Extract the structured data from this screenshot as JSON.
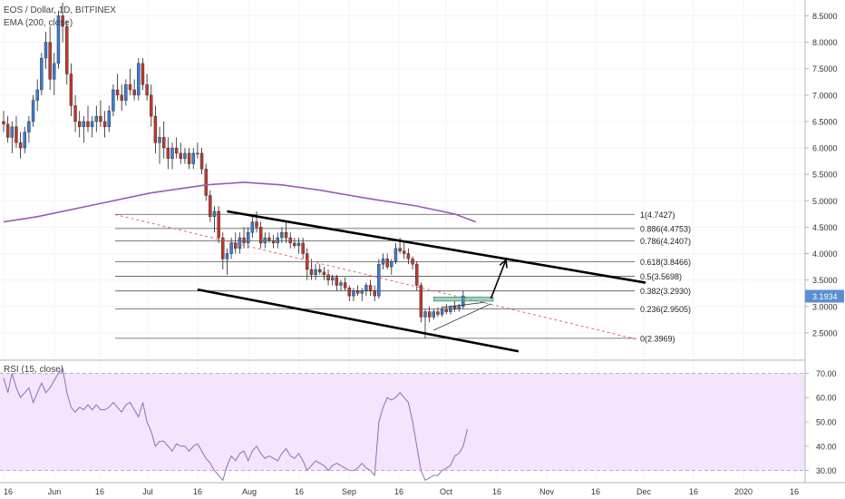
{
  "header": {
    "symbol_line": "EOS / Dollar, 1D, BITFINEX",
    "ema_line": "EMA (200, close)",
    "rsi_line": "RSI (15, close)"
  },
  "colors": {
    "up": "#3a7bd5",
    "down": "#c0392b",
    "ema": "#9b59b6",
    "rsi": "#8e6fb5",
    "rsi_band": "#f3e5fb",
    "price_badge": "#5b8fd0",
    "consolidation": "#4caf8f"
  },
  "chart_data": {
    "type": "candlestick",
    "price_ylim": [
      2.0,
      8.8
    ],
    "price_ticks": [
      "8.5000",
      "8.0000",
      "7.5000",
      "7.0000",
      "6.5000",
      "6.0000",
      "5.5000",
      "5.0000",
      "4.5000",
      "4.0000",
      "3.5000",
      "3.0000",
      "2.5000"
    ],
    "rsi_ylim": [
      25,
      75
    ],
    "rsi_ticks": [
      "70.00",
      "60.00",
      "50.00",
      "40.00",
      "30.00"
    ],
    "x_ticks": [
      "16",
      "Jun",
      "16",
      "Jul",
      "16",
      "Aug",
      "16",
      "Sep",
      "16",
      "Oct",
      "16",
      "Nov",
      "16",
      "Dec",
      "16",
      "2020",
      "16"
    ],
    "last_price": "3.1934",
    "fib_levels": [
      {
        "ratio": 1,
        "price": 4.7427,
        "label": "1(4.7427)"
      },
      {
        "ratio": 0.886,
        "price": 4.4753,
        "label": "0.886(4.4753)"
      },
      {
        "ratio": 0.786,
        "price": 4.2407,
        "label": "0.786(4.2407)"
      },
      {
        "ratio": 0.618,
        "price": 3.8466,
        "label": "0.618(3.8466)"
      },
      {
        "ratio": 0.5,
        "price": 3.5698,
        "label": "0.5(3.5698)"
      },
      {
        "ratio": 0.382,
        "price": 3.293,
        "label": "0.382(3.2930)"
      },
      {
        "ratio": 0.236,
        "price": 2.9505,
        "label": "0.236(2.9505)"
      },
      {
        "ratio": 0,
        "price": 2.3969,
        "label": "0(2.3969)"
      }
    ],
    "candles": [
      [
        6.5,
        6.7,
        6.3,
        6.45
      ],
      [
        6.45,
        6.6,
        6.1,
        6.2
      ],
      [
        6.2,
        6.5,
        5.9,
        6.4
      ],
      [
        6.4,
        6.6,
        6.0,
        6.1
      ],
      [
        6.1,
        6.3,
        5.8,
        6.0
      ],
      [
        6.0,
        6.4,
        5.9,
        6.3
      ],
      [
        6.3,
        6.6,
        6.1,
        6.5
      ],
      [
        6.5,
        7.0,
        6.4,
        6.9
      ],
      [
        6.9,
        7.3,
        6.7,
        7.1
      ],
      [
        7.1,
        7.8,
        7.0,
        7.7
      ],
      [
        7.7,
        8.2,
        7.5,
        8.0
      ],
      [
        8.0,
        8.3,
        7.1,
        7.3
      ],
      [
        7.3,
        7.8,
        7.0,
        7.6
      ],
      [
        7.6,
        8.6,
        7.5,
        8.5
      ],
      [
        8.5,
        8.75,
        8.0,
        8.3
      ],
      [
        8.3,
        8.4,
        7.2,
        7.4
      ],
      [
        7.4,
        7.6,
        6.6,
        6.8
      ],
      [
        6.8,
        7.0,
        6.3,
        6.5
      ],
      [
        6.5,
        6.7,
        6.2,
        6.4
      ],
      [
        6.4,
        6.6,
        6.1,
        6.5
      ],
      [
        6.5,
        6.8,
        6.3,
        6.4
      ],
      [
        6.4,
        6.6,
        6.2,
        6.5
      ],
      [
        6.5,
        6.8,
        6.3,
        6.6
      ],
      [
        6.6,
        6.9,
        6.4,
        6.5
      ],
      [
        6.5,
        6.7,
        6.2,
        6.4
      ],
      [
        6.4,
        6.8,
        6.3,
        6.7
      ],
      [
        6.7,
        7.2,
        6.6,
        7.1
      ],
      [
        7.1,
        7.4,
        6.9,
        7.0
      ],
      [
        7.0,
        7.2,
        6.7,
        6.9
      ],
      [
        6.9,
        7.3,
        6.8,
        7.2
      ],
      [
        7.2,
        7.5,
        7.0,
        7.1
      ],
      [
        7.1,
        7.3,
        6.9,
        7.0
      ],
      [
        7.0,
        7.7,
        6.9,
        7.6
      ],
      [
        7.6,
        7.7,
        7.1,
        7.2
      ],
      [
        7.2,
        7.4,
        6.9,
        7.0
      ],
      [
        7.0,
        7.2,
        6.4,
        6.6
      ],
      [
        6.6,
        6.8,
        5.9,
        6.1
      ],
      [
        6.1,
        6.4,
        5.7,
        6.2
      ],
      [
        6.2,
        6.5,
        5.8,
        6.0
      ],
      [
        6.0,
        6.2,
        5.6,
        5.8
      ],
      [
        5.8,
        6.1,
        5.6,
        6.0
      ],
      [
        6.0,
        6.2,
        5.8,
        5.9
      ],
      [
        5.9,
        6.1,
        5.7,
        5.8
      ],
      [
        5.8,
        6.0,
        5.7,
        5.9
      ],
      [
        5.9,
        6.0,
        5.6,
        5.7
      ],
      [
        5.7,
        6.0,
        5.6,
        5.9
      ],
      [
        5.9,
        6.1,
        5.8,
        5.9
      ],
      [
        5.9,
        6.0,
        5.5,
        5.6
      ],
      [
        5.6,
        5.7,
        5.0,
        5.1
      ],
      [
        5.1,
        5.2,
        4.6,
        4.7
      ],
      [
        4.7,
        4.9,
        4.4,
        4.8
      ],
      [
        4.8,
        4.9,
        4.2,
        4.3
      ],
      [
        4.3,
        4.4,
        3.7,
        3.9
      ],
      [
        3.9,
        4.1,
        3.6,
        4.0
      ],
      [
        4.0,
        4.3,
        3.9,
        4.2
      ],
      [
        4.2,
        4.4,
        4.0,
        4.1
      ],
      [
        4.1,
        4.4,
        4.0,
        4.3
      ],
      [
        4.3,
        4.5,
        4.1,
        4.2
      ],
      [
        4.2,
        4.5,
        4.1,
        4.4
      ],
      [
        4.4,
        4.7,
        4.3,
        4.6
      ],
      [
        4.6,
        4.8,
        4.4,
        4.5
      ],
      [
        4.5,
        4.6,
        4.1,
        4.2
      ],
      [
        4.2,
        4.4,
        4.1,
        4.3
      ],
      [
        4.3,
        4.4,
        4.2,
        4.25
      ],
      [
        4.25,
        4.35,
        4.1,
        4.2
      ],
      [
        4.2,
        4.4,
        4.1,
        4.3
      ],
      [
        4.3,
        4.5,
        4.2,
        4.4
      ],
      [
        4.4,
        4.6,
        4.2,
        4.3
      ],
      [
        4.3,
        4.4,
        4.1,
        4.2
      ],
      [
        4.2,
        4.3,
        4.1,
        4.15
      ],
      [
        4.15,
        4.3,
        4.0,
        4.2
      ],
      [
        4.2,
        4.3,
        3.9,
        4.0
      ],
      [
        4.0,
        4.1,
        3.5,
        3.7
      ],
      [
        3.7,
        3.9,
        3.5,
        3.6
      ],
      [
        3.6,
        3.8,
        3.5,
        3.7
      ],
      [
        3.7,
        3.8,
        3.6,
        3.65
      ],
      [
        3.65,
        3.75,
        3.5,
        3.6
      ],
      [
        3.6,
        3.7,
        3.4,
        3.5
      ],
      [
        3.5,
        3.6,
        3.4,
        3.55
      ],
      [
        3.55,
        3.6,
        3.3,
        3.4
      ],
      [
        3.4,
        3.5,
        3.3,
        3.45
      ],
      [
        3.45,
        3.55,
        3.3,
        3.35
      ],
      [
        3.35,
        3.4,
        3.1,
        3.2
      ],
      [
        3.2,
        3.35,
        3.1,
        3.3
      ],
      [
        3.3,
        3.4,
        3.2,
        3.25
      ],
      [
        3.25,
        3.35,
        3.1,
        3.3
      ],
      [
        3.3,
        3.45,
        3.2,
        3.4
      ],
      [
        3.4,
        3.5,
        3.2,
        3.3
      ],
      [
        3.3,
        3.4,
        3.1,
        3.2
      ],
      [
        3.2,
        3.9,
        3.15,
        3.8
      ],
      [
        3.8,
        4.0,
        3.7,
        3.9
      ],
      [
        3.9,
        4.0,
        3.7,
        3.75
      ],
      [
        3.75,
        3.9,
        3.6,
        3.85
      ],
      [
        3.85,
        4.2,
        3.8,
        4.1
      ],
      [
        4.1,
        4.3,
        4.0,
        4.05
      ],
      [
        4.05,
        4.2,
        3.9,
        4.0
      ],
      [
        4.0,
        4.1,
        3.8,
        3.9
      ],
      [
        3.9,
        3.95,
        3.7,
        3.8
      ],
      [
        3.8,
        3.85,
        3.3,
        3.4
      ],
      [
        3.4,
        3.45,
        2.7,
        2.8
      ],
      [
        2.8,
        2.95,
        2.4,
        2.9
      ],
      [
        2.9,
        3.0,
        2.7,
        2.8
      ],
      [
        2.8,
        2.95,
        2.75,
        2.9
      ],
      [
        2.9,
        2.98,
        2.8,
        2.85
      ],
      [
        2.85,
        3.0,
        2.8,
        2.95
      ],
      [
        2.95,
        3.05,
        2.85,
        2.9
      ],
      [
        2.9,
        3.02,
        2.85,
        3.0
      ],
      [
        3.0,
        3.1,
        2.9,
        2.95
      ],
      [
        2.95,
        3.05,
        2.9,
        3.0
      ],
      [
        3.0,
        3.3,
        2.95,
        3.2
      ]
    ],
    "ema": [
      [
        0,
        4.6
      ],
      [
        8,
        4.7
      ],
      [
        20,
        4.9
      ],
      [
        35,
        5.15
      ],
      [
        48,
        5.3
      ],
      [
        57,
        5.35
      ],
      [
        66,
        5.3
      ],
      [
        75,
        5.2
      ],
      [
        86,
        5.05
      ],
      [
        98,
        4.9
      ],
      [
        107,
        4.75
      ],
      [
        112,
        4.6
      ]
    ],
    "rsi": [
      68,
      62,
      70,
      64,
      60,
      62,
      64,
      58,
      62,
      66,
      62,
      64,
      67,
      70,
      72,
      62,
      56,
      54,
      56,
      55,
      57,
      55,
      57,
      55,
      55,
      56,
      58,
      56,
      54,
      57,
      58,
      55,
      52,
      58,
      50,
      46,
      40,
      42,
      42,
      40,
      38,
      41,
      40,
      40,
      38,
      40,
      41,
      38,
      35,
      33,
      30,
      28,
      26,
      32,
      36,
      34,
      37,
      38,
      34,
      38,
      40,
      37,
      35,
      36,
      35,
      34,
      37,
      39,
      36,
      35,
      37,
      34,
      30,
      32,
      34,
      33,
      32,
      30,
      32,
      33,
      32,
      31,
      30,
      30,
      31,
      33,
      31,
      30,
      28,
      50,
      56,
      60,
      59,
      60,
      62,
      60,
      58,
      50,
      40,
      30,
      26,
      27,
      28,
      28,
      30,
      31,
      32,
      36,
      37,
      40,
      47
    ]
  }
}
